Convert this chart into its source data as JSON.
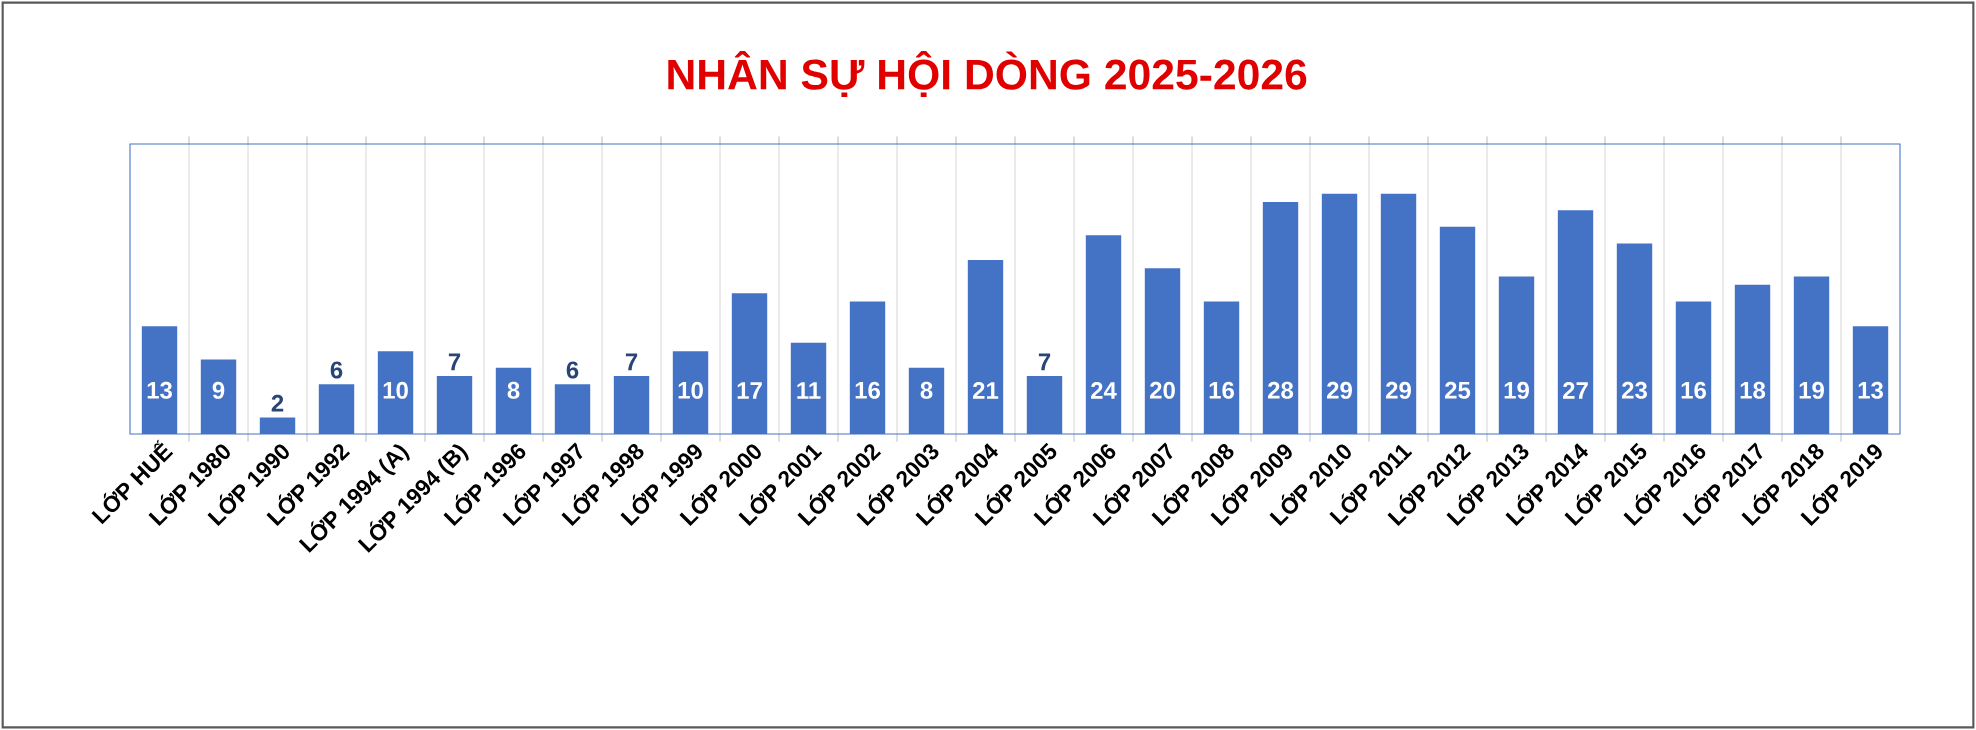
{
  "chart_data": {
    "type": "bar",
    "title": "NHÂN SỰ HỘI DÒNG 2025-2026",
    "categories": [
      "LỚP HUẾ",
      "LỚP 1980",
      "LỚP 1990",
      "LỚP 1992",
      "LỚP 1994 (A)",
      "LỚP 1994 (B)",
      "LỚP 1996",
      "LỚP 1997",
      "LỚP 1998",
      "LỚP 1999",
      "LỚP 2000",
      "LỚP 2001",
      "LỚP 2002",
      "LỚP 2003",
      "LỚP 2004",
      "LỚP 2005",
      "LỚP 2006",
      "LỚP 2007",
      "LỚP 2008",
      "LỚP 2009",
      "LỚP 2010",
      "LỚP 2011",
      "LỚP 2012",
      "LỚP 2013",
      "LỚP 2014",
      "LỚP 2015",
      "LỚP 2016",
      "LỚP 2017",
      "LỚP 2018",
      "LỚP 2019"
    ],
    "values": [
      13,
      9,
      2,
      6,
      10,
      7,
      8,
      6,
      7,
      10,
      17,
      11,
      16,
      8,
      21,
      7,
      24,
      20,
      16,
      28,
      29,
      29,
      25,
      19,
      27,
      23,
      16,
      18,
      19,
      13
    ],
    "color": "#4472c4",
    "ylim": [
      0,
      35
    ],
    "data_labels": true,
    "grid": "x",
    "tick_labels": "x"
  }
}
